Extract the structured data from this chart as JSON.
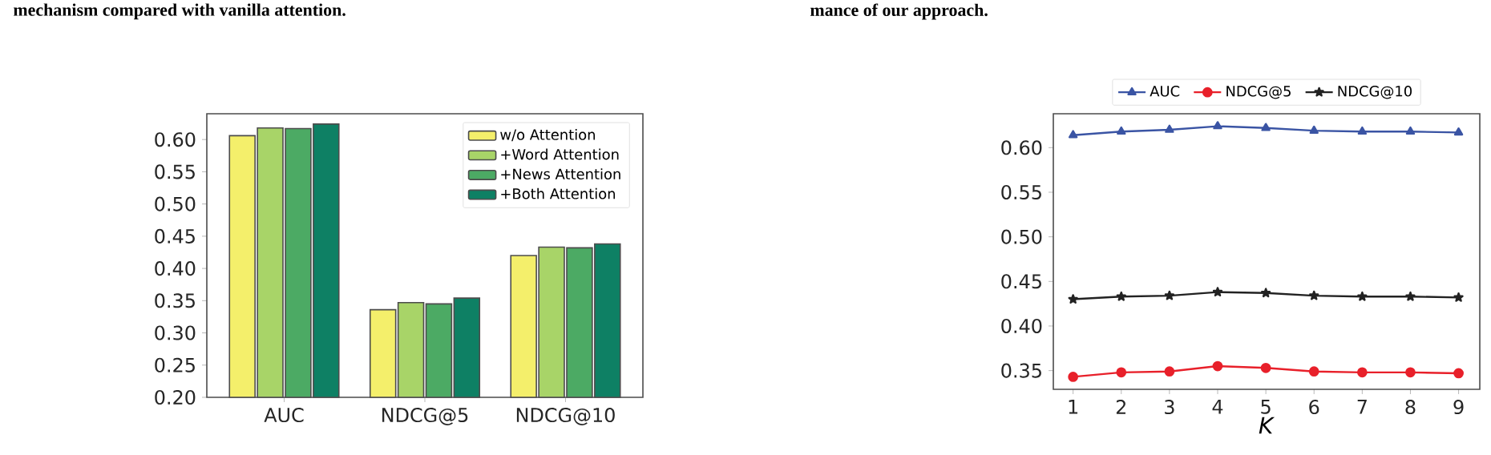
{
  "chart_data": [
    {
      "type": "bar",
      "annotations": [
        "mechanism compared with vanilla attention."
      ],
      "categories": [
        "AUC",
        "NDCG@5",
        "NDCG@10"
      ],
      "series": [
        {
          "name": "w/o Attention",
          "color": "#f4ef6b",
          "values": [
            0.606,
            0.336,
            0.42
          ]
        },
        {
          "name": "+Word Attention",
          "color": "#a8d468",
          "values": [
            0.618,
            0.347,
            0.433
          ]
        },
        {
          "name": "+News Attention",
          "color": "#4caa64",
          "values": [
            0.617,
            0.345,
            0.432
          ]
        },
        {
          "name": "+Both Attention",
          "color": "#0e8064",
          "values": [
            0.624,
            0.354,
            0.438
          ]
        }
      ],
      "ylim": [
        0.2,
        0.64
      ],
      "yticks": [
        {
          "value": 0.2,
          "label": "0.20"
        },
        {
          "value": 0.25,
          "label": "0.25"
        },
        {
          "value": 0.3,
          "label": "0.30"
        },
        {
          "value": 0.35,
          "label": "0.35"
        },
        {
          "value": 0.4,
          "label": "0.40"
        },
        {
          "value": 0.45,
          "label": "0.45"
        },
        {
          "value": 0.5,
          "label": "0.50"
        },
        {
          "value": 0.55,
          "label": "0.55"
        },
        {
          "value": 0.6,
          "label": "0.60"
        }
      ],
      "legend": "top right"
    },
    {
      "type": "line",
      "annotations": [
        "mance of our approach."
      ],
      "x": [
        1,
        2,
        3,
        4,
        5,
        6,
        7,
        8,
        9
      ],
      "series": [
        {
          "name": "AUC",
          "color": "#3a54a4",
          "marker": "triangle",
          "values": [
            0.614,
            0.618,
            0.62,
            0.624,
            0.622,
            0.619,
            0.618,
            0.618,
            0.617
          ]
        },
        {
          "name": "NDCG@5",
          "color": "#e8202a",
          "marker": "circle",
          "values": [
            0.343,
            0.348,
            0.349,
            0.355,
            0.353,
            0.349,
            0.348,
            0.348,
            0.347
          ]
        },
        {
          "name": "NDCG@10",
          "color": "#222222",
          "marker": "star",
          "values": [
            0.43,
            0.433,
            0.434,
            0.438,
            0.437,
            0.434,
            0.433,
            0.433,
            0.432
          ]
        }
      ],
      "xlabel": "*K*",
      "xlim": [
        0.59,
        9.44
      ],
      "xticks": [
        1,
        2,
        3,
        4,
        5,
        6,
        7,
        8,
        9
      ],
      "ylim": [
        0.329,
        0.638
      ],
      "yticks": [
        {
          "value": 0.35,
          "label": "0.35"
        },
        {
          "value": 0.4,
          "label": "0.40"
        },
        {
          "value": 0.45,
          "label": "0.45"
        },
        {
          "value": 0.5,
          "label": "0.50"
        },
        {
          "value": 0.55,
          "label": "0.55"
        },
        {
          "value": 0.6,
          "label": "0.60"
        }
      ],
      "legend": "top"
    }
  ]
}
